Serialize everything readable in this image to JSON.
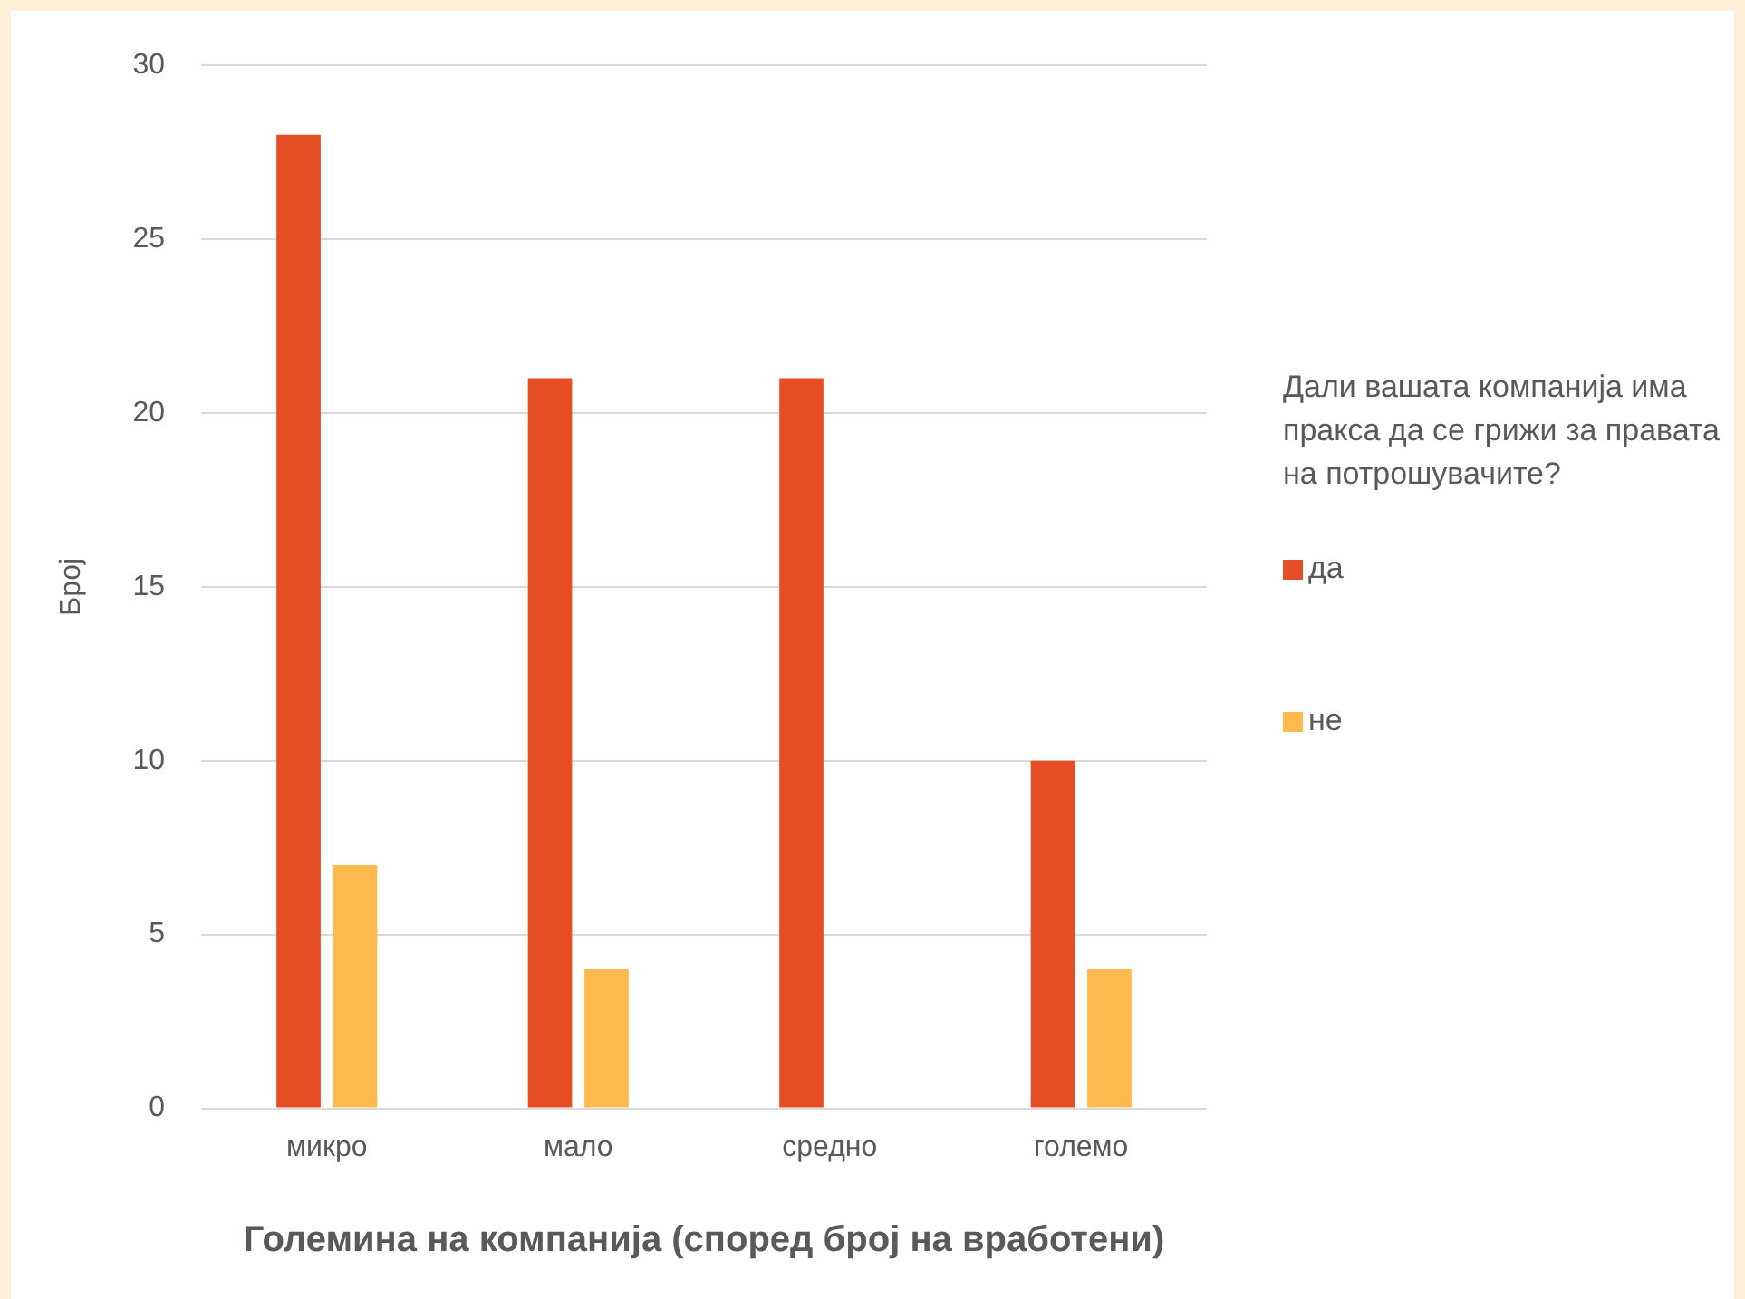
{
  "chart_data": {
    "type": "bar",
    "xlabel": "Големина на компанија (според број на вработени)",
    "ylabel": "Број",
    "legend_title": "Дали вашата компанија има пракса да се грижи за правата на потрошувачите?",
    "categories": [
      "микро",
      "мало",
      "средно",
      "големо"
    ],
    "series": [
      {
        "name": "да",
        "color": "#e54e25",
        "values": [
          28,
          21,
          21,
          10
        ]
      },
      {
        "name": "не",
        "color": "#fdb94d",
        "values": [
          7,
          4,
          0,
          4
        ]
      }
    ],
    "ylim": [
      0,
      30
    ],
    "yticks": [
      0,
      5,
      10,
      15,
      20,
      25,
      30
    ],
    "grid": "y",
    "legend": "right"
  }
}
